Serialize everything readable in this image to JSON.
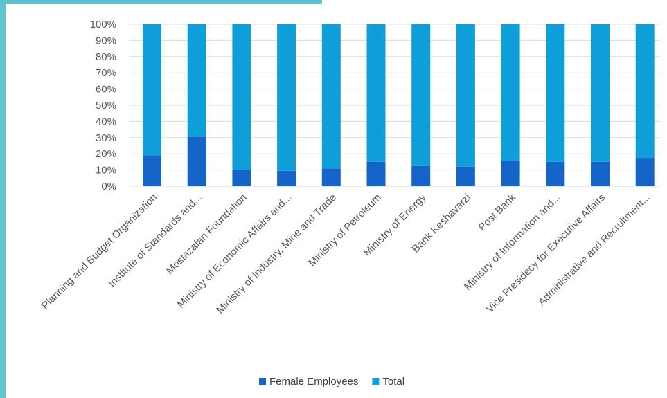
{
  "chart_data": {
    "type": "bar",
    "stacked": true,
    "percent_stacked": true,
    "categories": [
      "Planning and Budget Organization",
      "Institute of Standards and...",
      "Mostazafan Foundation",
      "Ministry of Economic Affairs and...",
      "Ministry of Industry, Mine and Trade",
      "Ministry of Petroleum",
      "Ministry of Energy",
      "Bank Keshavarzi",
      "Post Bank",
      "Ministry of Information and...",
      "Vice Presidecy for Executive Affairs",
      "Administrative and Recruitment..."
    ],
    "series": [
      {
        "name": "Female Employees",
        "color": "#1565c8",
        "values": [
          19,
          30.5,
          10,
          9.5,
          11,
          15,
          12.5,
          12,
          15.5,
          15,
          15,
          17.5
        ]
      },
      {
        "name": "Total",
        "color": "#0e9fd8",
        "values": [
          81,
          69.5,
          90,
          90.5,
          89,
          85,
          87.5,
          88,
          84.5,
          85,
          85,
          82.5
        ]
      }
    ],
    "y_ticks": [
      "0%",
      "10%",
      "20%",
      "30%",
      "40%",
      "50%",
      "60%",
      "70%",
      "80%",
      "90%",
      "100%"
    ],
    "ylim": [
      0,
      100
    ],
    "grid": true,
    "legend_position": "bottom"
  }
}
